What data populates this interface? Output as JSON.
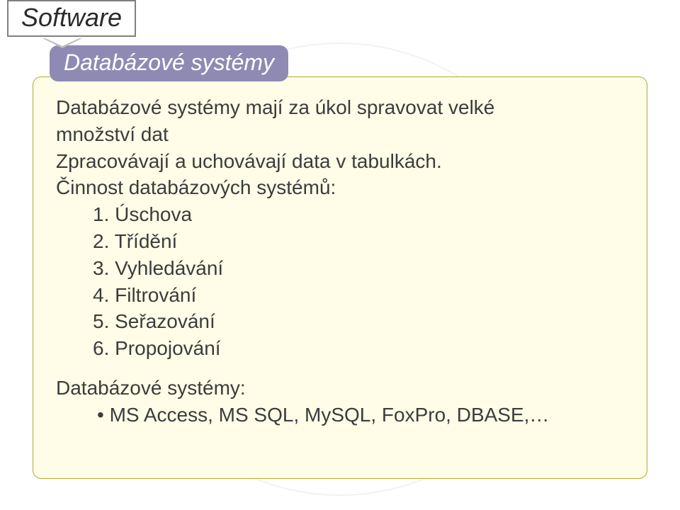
{
  "header": {
    "label": "Software"
  },
  "title_pill": {
    "text": "Databázové systémy",
    "bg_color": "#8f8ab3",
    "text_color": "#ffffff"
  },
  "content": {
    "intro_line1": "Databázové systémy mají za úkol spravovat velké",
    "intro_line2": "množství dat",
    "proc_line": "Zpracovávají a uchovávají data v tabulkách.",
    "activity_heading": "Činnost databázových systémů:",
    "activities": {
      "0": "1. Úschova",
      "1": "2. Třídění",
      "2": "3. Vyhledávání",
      "3": "4. Filtrování",
      "4": "5. Seřazování",
      "5": "6. Propojování"
    },
    "examples_label": "Databázové systémy:",
    "examples_line": "MS Access, MS SQL, MySQL, FoxPro, DBASE,…"
  },
  "style": {
    "box_bg": "#fffde7",
    "box_border": "#b1aa2f",
    "page_bg": "#ffffff",
    "body_font_size": 28,
    "title_font_size": 32,
    "header_font_size": 36,
    "text_color": "#3c3c3c"
  }
}
